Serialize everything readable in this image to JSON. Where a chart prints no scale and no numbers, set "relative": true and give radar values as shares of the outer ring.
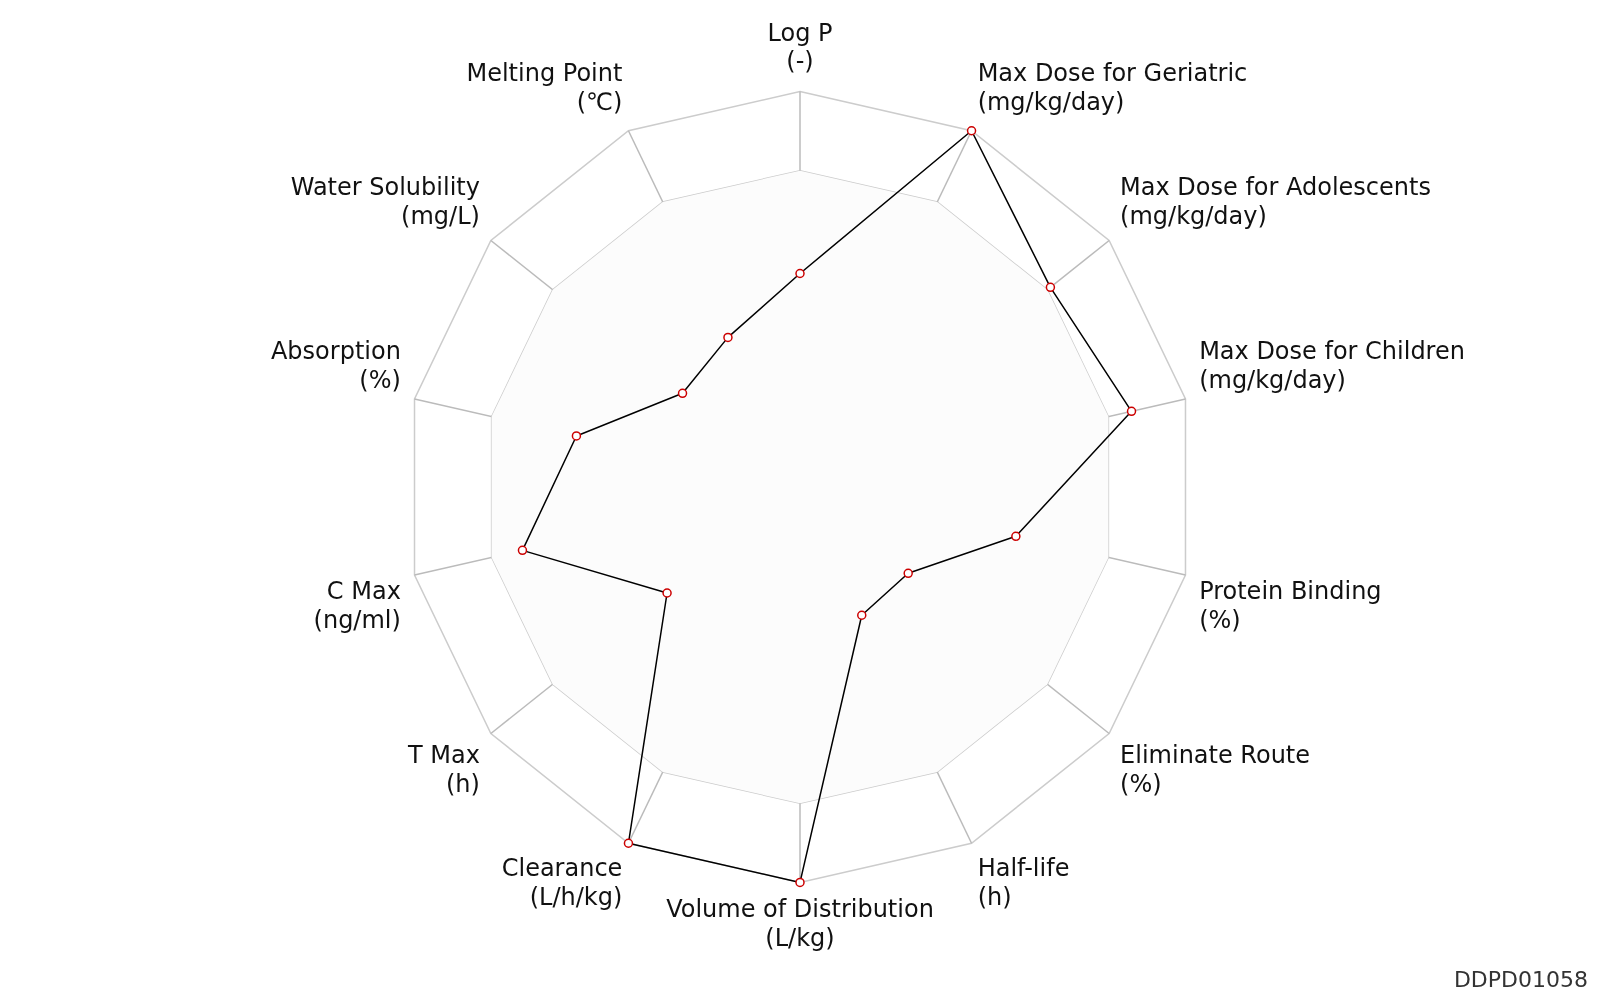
{
  "chart_data": {
    "type": "radar",
    "relative": true,
    "legend": false,
    "grid": true,
    "marker": "circle",
    "line_style": "solid",
    "categories": [
      "Log P\n(-)",
      "Max Dose for Geriatric\n(mg/kg/day)",
      "Max Dose for Adolescents\n(mg/kg/day)",
      "Max Dose for Children\n(mg/kg/day)",
      "Protein Binding\n(%)",
      "Eliminate Route\n(%)",
      "Half-life\n(h)",
      "Volume of Distribution\n(L/kg)",
      "Clearance\n(L/h/kg)",
      "T Max\n(h)",
      "C Max\n(ng/ml)",
      "Absorption\n(%)",
      "Water Solubility\n(mg/L)",
      "Melting Point\n(℃)"
    ],
    "series": [
      {
        "color": "#000000",
        "values": [
          0.54,
          1,
          0.81,
          0.86,
          0.56,
          0.35,
          0.36,
          1,
          1,
          0.43,
          0.72,
          0.58,
          0.38,
          0.42
        ]
      }
    ],
    "annotations": [
      "DDPD01058"
    ]
  }
}
